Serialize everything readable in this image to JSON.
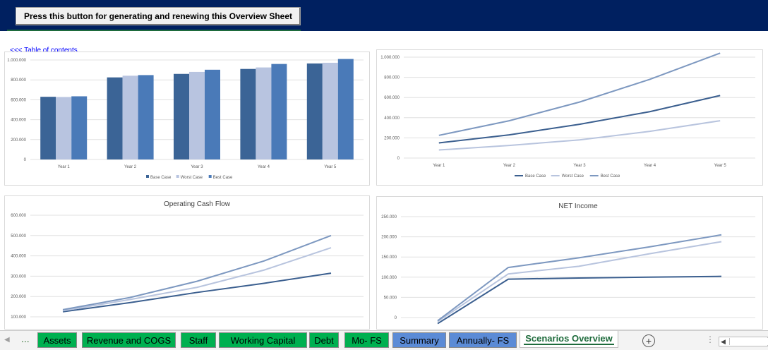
{
  "header": {
    "button_label": "Press this button for generating and renewing this Overview Sheet",
    "bg_color": "#002060"
  },
  "toc_link": "<<< Table of contents",
  "colors": {
    "base": "#3b6496",
    "worst": "#b8c4e0",
    "best": "#4a7ab8",
    "line_base": "#3b5f8f",
    "line_worst": "#b8c4de",
    "line_best": "#7d98c0",
    "tab_green": "#00b050",
    "tab_blue": "#5b8bd6"
  },
  "charts": {
    "chart1": {
      "yticks": [
        "0",
        "200.000",
        "400.000",
        "600.000",
        "800.000",
        "1.000.000"
      ],
      "legend": [
        "Base Case",
        "Worst Case",
        "Best Case"
      ]
    },
    "chart2": {
      "yticks": [
        "0",
        "200.000",
        "400.000",
        "600.000",
        "800.000",
        "1.000.000"
      ],
      "legend": [
        "Base Case",
        "Worst Case",
        "Best Case"
      ]
    },
    "chart3": {
      "title": "Operating Cash Flow",
      "yticks": [
        "100.000",
        "200.000",
        "300.000",
        "400.000",
        "500.000",
        "600.000"
      ]
    },
    "chart4": {
      "title": "NET Income",
      "yticks": [
        "0",
        "50.000",
        "100.000",
        "150.000",
        "200.000",
        "250.000"
      ]
    }
  },
  "chart_data": [
    {
      "type": "bar",
      "categories": [
        "Year 1",
        "Year 2",
        "Year 3",
        "Year 4",
        "Year 5"
      ],
      "ylim": [
        0,
        1000000
      ],
      "series": [
        {
          "name": "Base Case",
          "values": [
            630000,
            825000,
            860000,
            910000,
            965000
          ]
        },
        {
          "name": "Worst Case",
          "values": [
            628000,
            842000,
            880000,
            925000,
            972000
          ]
        },
        {
          "name": "Best Case",
          "values": [
            635000,
            848000,
            902000,
            960000,
            1010000
          ]
        }
      ]
    },
    {
      "type": "line",
      "categories": [
        "Year 1",
        "Year 2",
        "Year 3",
        "Year 4",
        "Year 5"
      ],
      "ylim": [
        0,
        1000000
      ],
      "series": [
        {
          "name": "Base Case",
          "values": [
            150000,
            230000,
            335000,
            460000,
            620000
          ]
        },
        {
          "name": "Worst Case",
          "values": [
            80000,
            125000,
            180000,
            265000,
            370000
          ]
        },
        {
          "name": "Best Case",
          "values": [
            225000,
            370000,
            555000,
            780000,
            1040000
          ]
        }
      ]
    },
    {
      "type": "line",
      "title": "Operating Cash Flow",
      "ylim": [
        100000,
        600000
      ],
      "series": [
        {
          "values": [
            125000,
            170000,
            220000,
            265000,
            315000
          ]
        },
        {
          "values": [
            130000,
            185000,
            245000,
            330000,
            440000
          ]
        },
        {
          "values": [
            135000,
            195000,
            275000,
            375000,
            500000
          ]
        }
      ]
    },
    {
      "type": "line",
      "title": "NET Income",
      "ylim": [
        0,
        250000
      ],
      "series": [
        {
          "values": [
            -15000,
            95000,
            98000,
            100000,
            102000
          ]
        },
        {
          "values": [
            -10000,
            108000,
            127000,
            158000,
            188000
          ]
        },
        {
          "values": [
            -8000,
            124000,
            148000,
            175000,
            205000
          ]
        }
      ]
    }
  ],
  "tabs": [
    {
      "label": "Assets",
      "type": "green"
    },
    {
      "label": "Revenue and COGS",
      "type": "green"
    },
    {
      "label": "Staff",
      "type": "green"
    },
    {
      "label": "Working Capital",
      "type": "green"
    },
    {
      "label": "Debt",
      "type": "green"
    },
    {
      "label": "Mo- FS",
      "type": "green"
    },
    {
      "label": "Summary",
      "type": "blue"
    },
    {
      "label": "Annually- FS",
      "type": "blue"
    },
    {
      "label": "Scenarios Overview",
      "type": "active"
    }
  ],
  "tabbar": {
    "ellipsis": "...",
    "add_icon": "plus-circle-icon",
    "more_icon": "vertical-dots-icon"
  }
}
